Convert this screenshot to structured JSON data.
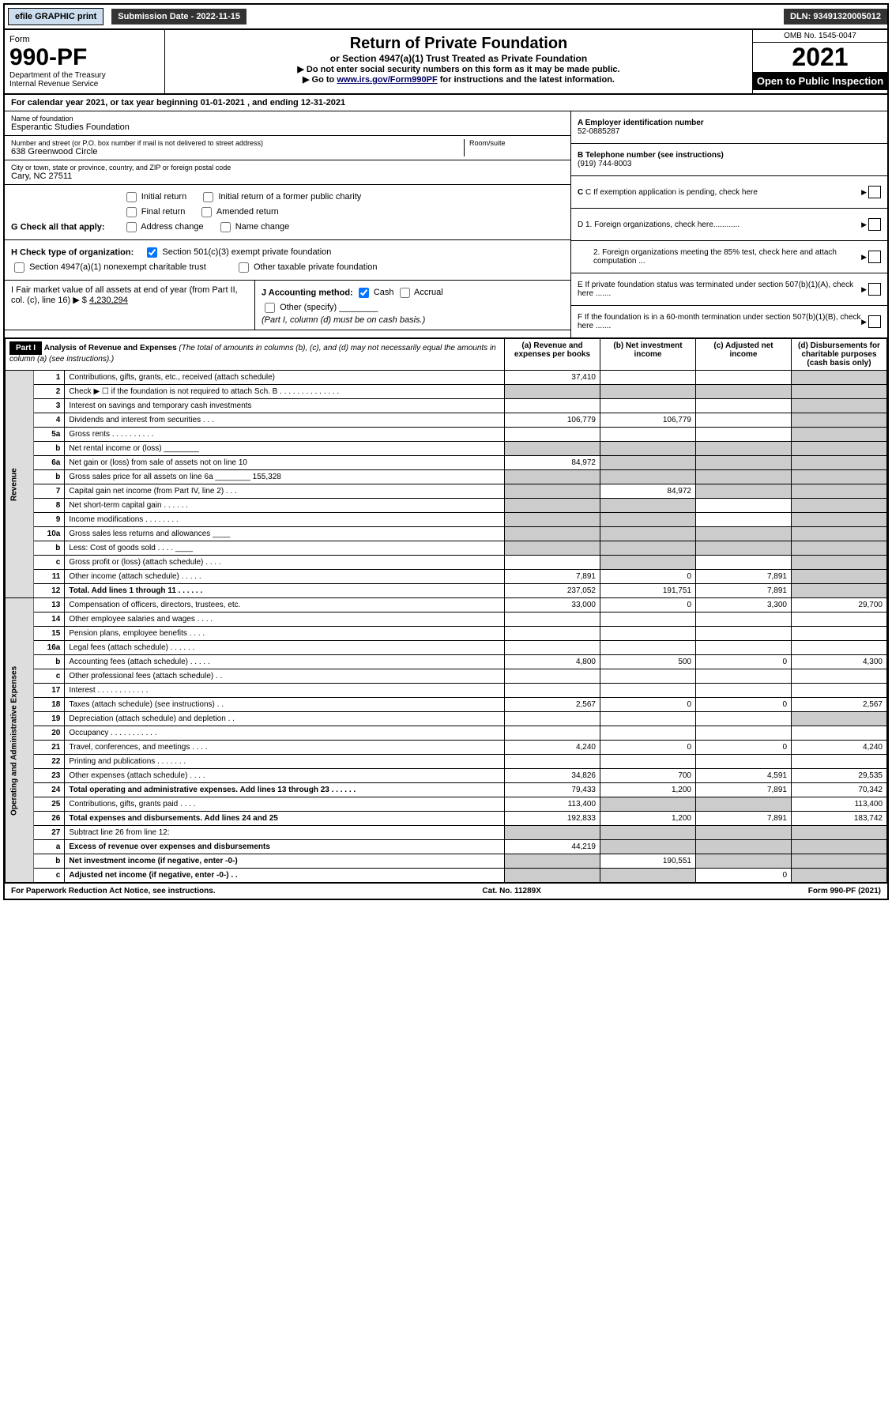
{
  "topbar": {
    "efile": "efile GRAPHIC print",
    "submission": "Submission Date - 2022-11-15",
    "dln": "DLN: 93491320005012"
  },
  "header": {
    "form_label": "Form",
    "form_number": "990-PF",
    "dept": "Department of the Treasury\nInternal Revenue Service",
    "title": "Return of Private Foundation",
    "subtitle": "or Section 4947(a)(1) Trust Treated as Private Foundation",
    "note1": "▶ Do not enter social security numbers on this form as it may be made public.",
    "note2_pre": "▶ Go to ",
    "note2_link": "www.irs.gov/Form990PF",
    "note2_post": " for instructions and the latest information.",
    "omb": "OMB No. 1545-0047",
    "year": "2021",
    "open": "Open to Public Inspection"
  },
  "cal_year": "For calendar year 2021, or tax year beginning 01-01-2021             , and ending 12-31-2021",
  "info": {
    "name_label": "Name of foundation",
    "name": "Esperantic Studies Foundation",
    "addr_label": "Number and street (or P.O. box number if mail is not delivered to street address)",
    "addr": "638 Greenwood Circle",
    "room_label": "Room/suite",
    "room": "",
    "city_label": "City or town, state or province, country, and ZIP or foreign postal code",
    "city": "Cary, NC  27511",
    "a_label": "A Employer identification number",
    "a_val": "52-0885287",
    "b_label": "B Telephone number (see instructions)",
    "b_val": "(919) 744-8003",
    "c_label": "C If exemption application is pending, check here",
    "d1_label": "D 1. Foreign organizations, check here............",
    "d2_label": "2. Foreign organizations meeting the 85% test, check here and attach computation ...",
    "e_label": "E  If private foundation status was terminated under section 507(b)(1)(A), check here .......",
    "f_label": "F  If the foundation is in a 60-month termination under section 507(b)(1)(B), check here ......."
  },
  "g": {
    "label": "G Check all that apply:",
    "opts": [
      "Initial return",
      "Initial return of a former public charity",
      "Final return",
      "Amended return",
      "Address change",
      "Name change"
    ]
  },
  "h": {
    "label": "H Check type of organization:",
    "opt1": "Section 501(c)(3) exempt private foundation",
    "opt2": "Section 4947(a)(1) nonexempt charitable trust",
    "opt3": "Other taxable private foundation"
  },
  "i": {
    "label": "I Fair market value of all assets at end of year (from Part II, col. (c), line 16) ▶ $",
    "val": "4,230,294"
  },
  "j": {
    "label": "J Accounting method:",
    "cash": "Cash",
    "accrual": "Accrual",
    "other": "Other (specify)",
    "note": "(Part I, column (d) must be on cash basis.)"
  },
  "part1": {
    "hdr": "Part I",
    "title": "Analysis of Revenue and Expenses",
    "title_note": "(The total of amounts in columns (b), (c), and (d) may not necessarily equal the amounts in column (a) (see instructions).)",
    "cols": {
      "a": "(a) Revenue and expenses per books",
      "b": "(b) Net investment income",
      "c": "(c) Adjusted net income",
      "d": "(d) Disbursements for charitable purposes (cash basis only)"
    }
  },
  "sections": {
    "rev": "Revenue",
    "exp": "Operating and Administrative Expenses"
  },
  "rows": [
    {
      "n": "1",
      "desc": "Contributions, gifts, grants, etc., received (attach schedule)",
      "a": "37,410",
      "b": "",
      "c": "",
      "d": "",
      "shade_d": true
    },
    {
      "n": "2",
      "desc": "Check ▶ ☐ if the foundation is not required to attach Sch. B   .  .  .  .  .  .  .  .  .  .  .  .  .  .",
      "a": "",
      "b": "",
      "c": "",
      "d": "",
      "shade_all": true
    },
    {
      "n": "3",
      "desc": "Interest on savings and temporary cash investments",
      "a": "",
      "b": "",
      "c": "",
      "d": "",
      "shade_d": true
    },
    {
      "n": "4",
      "desc": "Dividends and interest from securities  .  .  .",
      "a": "106,779",
      "b": "106,779",
      "c": "",
      "d": "",
      "shade_d": true
    },
    {
      "n": "5a",
      "desc": "Gross rents   .  .  .  .  .  .  .  .  .  .",
      "a": "",
      "b": "",
      "c": "",
      "d": "",
      "shade_d": true
    },
    {
      "n": "b",
      "desc": "Net rental income or (loss) ________",
      "a": "",
      "b": "",
      "c": "",
      "d": "",
      "shade_all": true
    },
    {
      "n": "6a",
      "desc": "Net gain or (loss) from sale of assets not on line 10",
      "a": "84,972",
      "b": "",
      "c": "",
      "d": "",
      "shade_bcd": true
    },
    {
      "n": "b",
      "desc": "Gross sales price for all assets on line 6a ________ 155,328",
      "a": "",
      "b": "",
      "c": "",
      "d": "",
      "shade_all": true
    },
    {
      "n": "7",
      "desc": "Capital gain net income (from Part IV, line 2)  .  .  .",
      "a": "",
      "b": "84,972",
      "c": "",
      "d": "",
      "shade_a": true,
      "shade_cd": true
    },
    {
      "n": "8",
      "desc": "Net short-term capital gain  .  .  .  .  .  .",
      "a": "",
      "b": "",
      "c": "",
      "d": "",
      "shade_ab": true,
      "shade_d": true
    },
    {
      "n": "9",
      "desc": "Income modifications  .  .  .  .  .  .  .  .",
      "a": "",
      "b": "",
      "c": "",
      "d": "",
      "shade_ab": true,
      "shade_d": true
    },
    {
      "n": "10a",
      "desc": "Gross sales less returns and allowances ____",
      "a": "",
      "b": "",
      "c": "",
      "d": "",
      "shade_all": true
    },
    {
      "n": "b",
      "desc": "Less: Cost of goods sold  .  .  .  . ____",
      "a": "",
      "b": "",
      "c": "",
      "d": "",
      "shade_all": true
    },
    {
      "n": "c",
      "desc": "Gross profit or (loss) (attach schedule)  .  .  .  .",
      "a": "",
      "b": "",
      "c": "",
      "d": "",
      "shade_b": true,
      "shade_d": true
    },
    {
      "n": "11",
      "desc": "Other income (attach schedule)  .  .  .  .  .",
      "a": "7,891",
      "b": "0",
      "c": "7,891",
      "d": "",
      "shade_d": true
    },
    {
      "n": "12",
      "desc": "Total. Add lines 1 through 11  .  .  .  .  .  .",
      "a": "237,052",
      "b": "191,751",
      "c": "7,891",
      "d": "",
      "bold": true,
      "shade_d": true
    },
    {
      "n": "13",
      "desc": "Compensation of officers, directors, trustees, etc.",
      "a": "33,000",
      "b": "0",
      "c": "3,300",
      "d": "29,700"
    },
    {
      "n": "14",
      "desc": "Other employee salaries and wages  .  .  .  .",
      "a": "",
      "b": "",
      "c": "",
      "d": ""
    },
    {
      "n": "15",
      "desc": "Pension plans, employee benefits  .  .  .  .",
      "a": "",
      "b": "",
      "c": "",
      "d": ""
    },
    {
      "n": "16a",
      "desc": "Legal fees (attach schedule)  .  .  .  .  .  .",
      "a": "",
      "b": "",
      "c": "",
      "d": ""
    },
    {
      "n": "b",
      "desc": "Accounting fees (attach schedule)  .  .  .  .  .",
      "a": "4,800",
      "b": "500",
      "c": "0",
      "d": "4,300"
    },
    {
      "n": "c",
      "desc": "Other professional fees (attach schedule)  .  .",
      "a": "",
      "b": "",
      "c": "",
      "d": ""
    },
    {
      "n": "17",
      "desc": "Interest  .  .  .  .  .  .  .  .  .  .  .  .",
      "a": "",
      "b": "",
      "c": "",
      "d": ""
    },
    {
      "n": "18",
      "desc": "Taxes (attach schedule) (see instructions)  .  .",
      "a": "2,567",
      "b": "0",
      "c": "0",
      "d": "2,567"
    },
    {
      "n": "19",
      "desc": "Depreciation (attach schedule) and depletion  .  .",
      "a": "",
      "b": "",
      "c": "",
      "d": "",
      "shade_d": true
    },
    {
      "n": "20",
      "desc": "Occupancy  .  .  .  .  .  .  .  .  .  .  .",
      "a": "",
      "b": "",
      "c": "",
      "d": ""
    },
    {
      "n": "21",
      "desc": "Travel, conferences, and meetings  .  .  .  .",
      "a": "4,240",
      "b": "0",
      "c": "0",
      "d": "4,240"
    },
    {
      "n": "22",
      "desc": "Printing and publications  .  .  .  .  .  .  .",
      "a": "",
      "b": "",
      "c": "",
      "d": ""
    },
    {
      "n": "23",
      "desc": "Other expenses (attach schedule)  .  .  .  .",
      "a": "34,826",
      "b": "700",
      "c": "4,591",
      "d": "29,535"
    },
    {
      "n": "24",
      "desc": "Total operating and administrative expenses. Add lines 13 through 23  .  .  .  .  .  .",
      "a": "79,433",
      "b": "1,200",
      "c": "7,891",
      "d": "70,342",
      "bold": true
    },
    {
      "n": "25",
      "desc": "Contributions, gifts, grants paid  .  .  .  .",
      "a": "113,400",
      "b": "",
      "c": "",
      "d": "113,400",
      "shade_bc": true
    },
    {
      "n": "26",
      "desc": "Total expenses and disbursements. Add lines 24 and 25",
      "a": "192,833",
      "b": "1,200",
      "c": "7,891",
      "d": "183,742",
      "bold": true
    },
    {
      "n": "27",
      "desc": "Subtract line 26 from line 12:",
      "a": "",
      "b": "",
      "c": "",
      "d": "",
      "shade_all": true
    },
    {
      "n": "a",
      "desc": "Excess of revenue over expenses and disbursements",
      "a": "44,219",
      "b": "",
      "c": "",
      "d": "",
      "bold": true,
      "shade_bcd": true
    },
    {
      "n": "b",
      "desc": "Net investment income (if negative, enter -0-)",
      "a": "",
      "b": "190,551",
      "c": "",
      "d": "",
      "bold": true,
      "shade_a": true,
      "shade_cd": true
    },
    {
      "n": "c",
      "desc": "Adjusted net income (if negative, enter -0-)  .  .",
      "a": "",
      "b": "",
      "c": "0",
      "d": "",
      "bold": true,
      "shade_ab": true,
      "shade_d": true
    }
  ],
  "footer": {
    "left": "For Paperwork Reduction Act Notice, see instructions.",
    "center": "Cat. No. 11289X",
    "right": "Form 990-PF (2021)"
  }
}
